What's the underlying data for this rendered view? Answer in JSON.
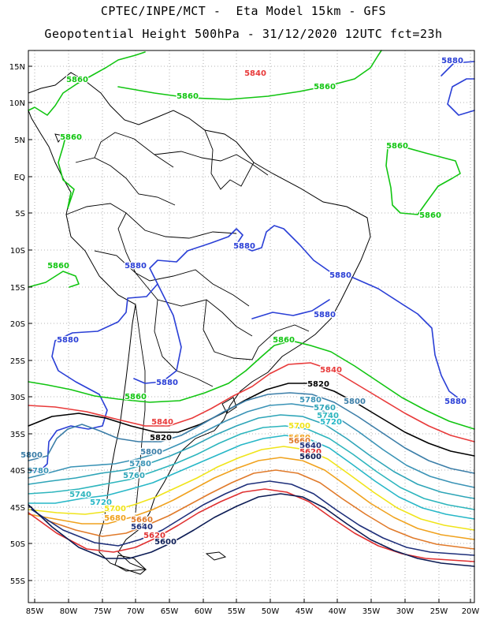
{
  "header": {
    "line1": "CPTEC/INPE/MCT -  Eta Model 15km - GFS",
    "line2": "Geopotential Height 500hPa - 31/12/2020 12UTC fct=23h"
  },
  "axes": {
    "lat_labels": [
      "15N",
      "10N",
      "5N",
      "EQ",
      "5S",
      "10S",
      "15S",
      "20S",
      "25S",
      "30S",
      "35S",
      "40S",
      "45S",
      "50S",
      "55S"
    ],
    "lon_labels": [
      "85W",
      "80W",
      "75W",
      "70W",
      "65W",
      "60W",
      "55W",
      "50W",
      "45W",
      "40W",
      "35W",
      "30W",
      "25W",
      "20W"
    ]
  },
  "colors": {
    "c5880": "#2a3fd6",
    "c5860": "#11c511",
    "c5840": "#e83a3a",
    "c5820": "#000000",
    "c5800": "#3c7ea8",
    "c5780": "#3a93b6",
    "c5760": "#2ea5b8",
    "c5740": "#2db5bd",
    "c5720": "#27b7c7",
    "c5700": "#f0e41a",
    "c5680": "#f0a21e",
    "c5660": "#e07a2a",
    "c5640": "#1e2f7a",
    "c5620": "#e03030",
    "c5600": "#0c1c55",
    "coast": "#000000"
  },
  "contour_labels": {
    "l5880": "5880",
    "l5860": "5860",
    "l5840": "5840",
    "l5820": "5820",
    "l5800": "5800",
    "l5780": "5780",
    "l5760": "5760",
    "l5740": "5740",
    "l5720": "5720",
    "l5700": "5700",
    "l5680": "5680",
    "l5660": "5660",
    "l5640": "5640",
    "l5620": "5620",
    "l5600": "5600"
  }
}
